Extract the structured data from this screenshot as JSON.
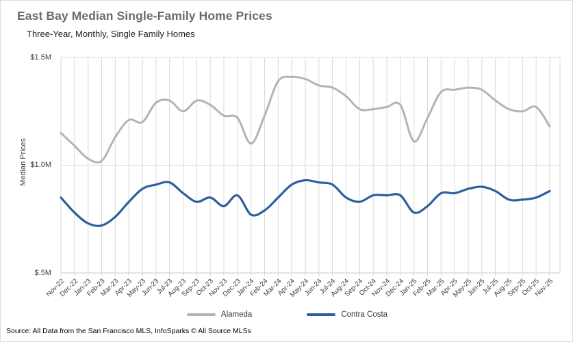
{
  "header": {
    "title": "East Bay Median Single-Family Home Prices",
    "subtitle": "Three-Year, Monthly, Single Family Homes"
  },
  "footer": {
    "source": "Source: All Data from the San Francisco MLS, InfoSparks © All Source MLSs"
  },
  "chart_data": {
    "type": "line",
    "title": "East Bay Median Single-Family Home Prices",
    "subtitle": "Three-Year, Monthly, Single Family Homes",
    "ylabel": "Median Prices",
    "xlabel": "",
    "y_ticks": [
      "$1.5M",
      "$1.0M",
      "$.5M"
    ],
    "ylim": [
      0.5,
      1.5
    ],
    "unit": "million USD",
    "grid": true,
    "legend_position": "bottom",
    "gridline_color": "#d9d9d9",
    "axis_color": "#c9c9c9",
    "categories": [
      "Nov-22",
      "Dec-22",
      "Jan-23",
      "Feb-23",
      "Mar-23",
      "Apr-23",
      "May-23",
      "Jun-23",
      "Jul-23",
      "Aug-23",
      "Sep-23",
      "Oct-23",
      "Nov-23",
      "Dec-23",
      "Jan-24",
      "Feb-24",
      "Mar-24",
      "Apr-24",
      "May-24",
      "Jun-24",
      "Jul-24",
      "Aug-24",
      "Sep-24",
      "Oct-24",
      "Nov-24",
      "Dec-24",
      "Jan-25",
      "Feb-25",
      "Mar-25",
      "Apr-25",
      "May-25",
      "Jun-25",
      "Jul-25",
      "Aug-25",
      "Sep-25",
      "Oct-25",
      "Nov-25"
    ],
    "series": [
      {
        "name": "Alameda",
        "color": "#b3b3b3",
        "values": [
          1.15,
          1.09,
          1.03,
          1.02,
          1.13,
          1.21,
          1.2,
          1.29,
          1.3,
          1.25,
          1.3,
          1.28,
          1.23,
          1.22,
          1.1,
          1.23,
          1.39,
          1.41,
          1.4,
          1.37,
          1.36,
          1.32,
          1.26,
          1.26,
          1.27,
          1.28,
          1.11,
          1.22,
          1.34,
          1.35,
          1.36,
          1.35,
          1.3,
          1.26,
          1.25,
          1.27,
          1.18
        ]
      },
      {
        "name": "Contra Costa",
        "color": "#2d5f9e",
        "values": [
          0.85,
          0.78,
          0.73,
          0.72,
          0.76,
          0.83,
          0.89,
          0.91,
          0.92,
          0.87,
          0.83,
          0.85,
          0.81,
          0.86,
          0.77,
          0.79,
          0.85,
          0.91,
          0.93,
          0.92,
          0.91,
          0.85,
          0.83,
          0.86,
          0.86,
          0.86,
          0.78,
          0.81,
          0.87,
          0.87,
          0.89,
          0.9,
          0.88,
          0.84,
          0.84,
          0.85,
          0.88
        ]
      }
    ]
  }
}
